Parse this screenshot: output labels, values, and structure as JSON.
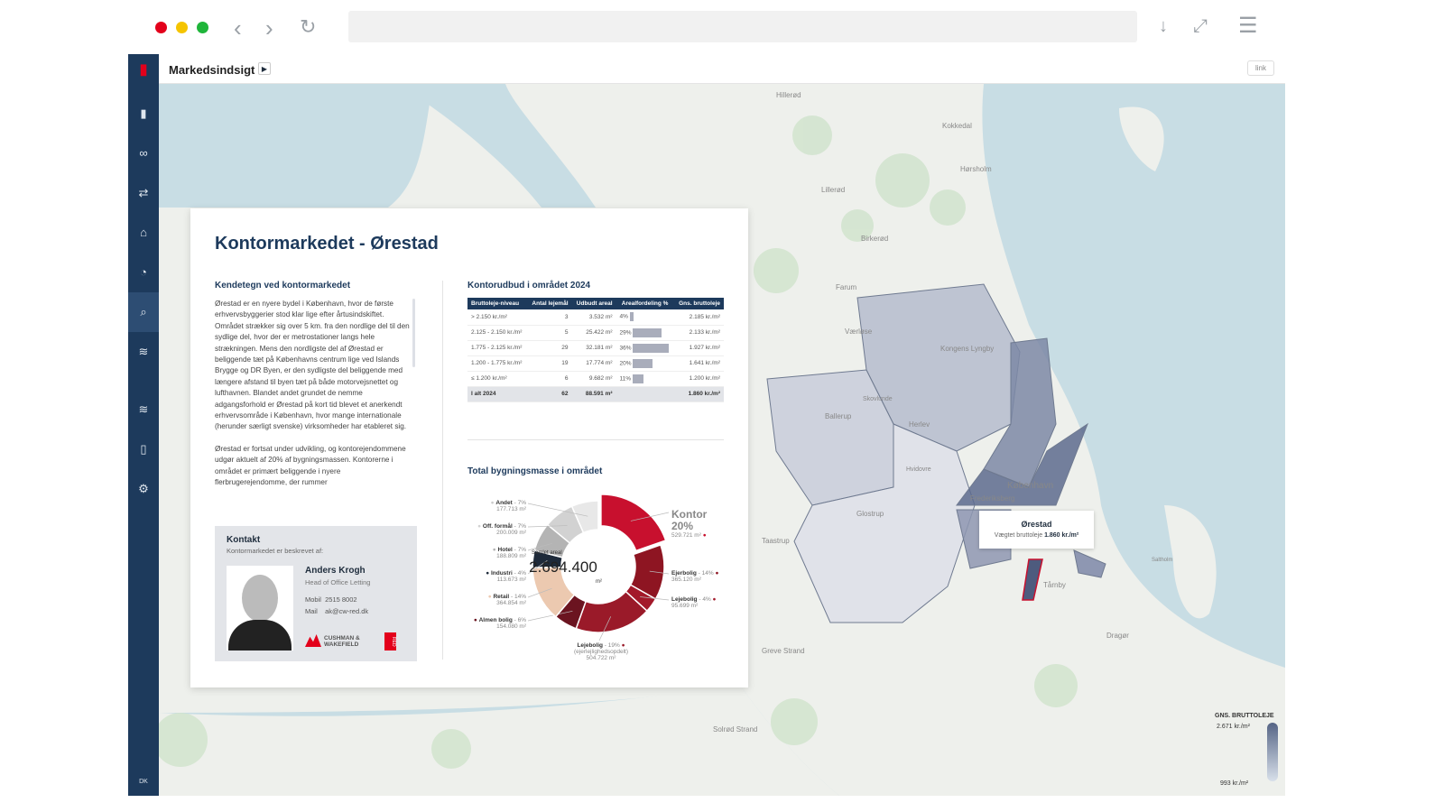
{
  "browser": {
    "icons": [
      "back-icon",
      "forward-icon",
      "reload-icon",
      "download-icon",
      "fullscreen-icon",
      "menu-icon"
    ]
  },
  "header": {
    "title": "Markedsindsigt",
    "link_label": "link"
  },
  "sidebar": {
    "items": [
      "book-icon",
      "binoculars-icon",
      "transfer-icon",
      "home-icon",
      "chart-icon",
      "search-icon",
      "layers-icon",
      "layers2-icon",
      "document-icon",
      "settings-icon"
    ],
    "footer": "DK"
  },
  "card": {
    "title": "Kontormarkedet - Ørestad",
    "left_heading": "Kendetegn ved kontormarkedet",
    "paragraphs": [
      "Ørestad er en nyere bydel i København, hvor de første erhvervsbyggerier stod klar lige efter årtusindskiftet. Området strækker sig over 5 km. fra den nordlige del til den sydlige del, hvor der er metrostationer langs hele strækningen. Mens den nordligste del af Ørestad er beliggende tæt på Københavns centrum lige ved Islands Brygge og DR Byen, er den sydligste del beliggende med længere afstand til byen tæt på både motorvejsnettet og lufthavnen. Blandet andet grundet de nemme adgangsforhold er Ørestad på kort tid blevet et anerkendt erhvervsområde i København, hvor mange internationale (herunder særligt svenske) virksomheder har etableret sig.",
      "Ørestad er fortsat under udvikling, og kontorejendommene udgør aktuelt af 20% af bygningsmassen. Kontorerne i området er primært beliggende i nyere flerbrugerejendomme, der rummer"
    ],
    "contact": {
      "heading": "Kontakt",
      "subtitle": "Kontormarkedet er beskrevet af:",
      "name": "Anders Krogh",
      "role": "Head of Office Letting",
      "mobile_label": "Mobil",
      "mobile": "2515 8002",
      "mail_label": "Mail",
      "mail": "ak@cw-red.dk",
      "logo": "CUSHMAN & WAKEFIELD",
      "logo2": "RED"
    },
    "table_heading": "Kontorudbud i området 2024",
    "table": {
      "headers": [
        "Bruttoleje-niveau",
        "Antal lejemål",
        "Udbudt areal",
        "Arealfordeling %",
        "Gns. bruttoleje"
      ],
      "rows": [
        {
          "level": "> 2.150 kr./m²",
          "count": "3",
          "area": "3.532 m²",
          "pct": 4,
          "pct_label": "4%",
          "rent": "2.185 kr./m²"
        },
        {
          "level": "2.125 - 2.150 kr./m²",
          "count": "5",
          "area": "25.422 m²",
          "pct": 29,
          "pct_label": "29%",
          "rent": "2.133 kr./m²"
        },
        {
          "level": "1.775 - 2.125 kr./m²",
          "count": "29",
          "area": "32.181 m²",
          "pct": 36,
          "pct_label": "36%",
          "rent": "1.927 kr./m²"
        },
        {
          "level": "1.200 - 1.775 kr./m²",
          "count": "19",
          "area": "17.774 m²",
          "pct": 20,
          "pct_label": "20%",
          "rent": "1.641 kr./m²"
        },
        {
          "level": "≤ 1.200 kr./m²",
          "count": "6",
          "area": "9.682 m²",
          "pct": 11,
          "pct_label": "11%",
          "rent": "1.200 kr./m²"
        }
      ],
      "total": {
        "level": "I alt 2024",
        "count": "62",
        "area": "88.591 m²",
        "rent": "1.860 kr./m²"
      }
    },
    "donut_heading": "Total bygningsmasse i området"
  },
  "chart_data": {
    "type": "pie",
    "title": "Total bygningsmasse i området",
    "center_label": "Samlet areal",
    "center_value": "2.694.400",
    "center_unit": "m²",
    "slices": [
      {
        "name": "Kontor",
        "pct": "20%",
        "area": "529.721 m²",
        "value": 529721,
        "color": "#c8102e"
      },
      {
        "name": "Ejerbolig",
        "pct": "14%",
        "area": "365.120 m²",
        "value": 365120,
        "color": "#8e1522"
      },
      {
        "name": "Lejebolig",
        "pct": "4%",
        "area": "95.699 m²",
        "value": 95699,
        "color": "#a3192a"
      },
      {
        "name": "Lejebolig",
        "pct": "19%",
        "sub": "(ejerlejlighedsopdelt)",
        "area": "504.722 m²",
        "value": 504722,
        "color": "#9a1a29"
      },
      {
        "name": "Almen bolig",
        "pct": "6%",
        "area": "154.080 m²",
        "value": 154080,
        "color": "#6b1420"
      },
      {
        "name": "Retail",
        "pct": "14%",
        "area": "364.854 m²",
        "value": 364854,
        "color": "#ecc9b0"
      },
      {
        "name": "Industri",
        "pct": "4%",
        "area": "113.673 m²",
        "value": 113673,
        "color": "#1e2a3a"
      },
      {
        "name": "Hotel",
        "pct": "7%",
        "area": "188.809 m²",
        "value": 188809,
        "color": "#b4b4b4"
      },
      {
        "name": "Off. formål",
        "pct": "7%",
        "area": "200.009 m²",
        "value": 200009,
        "color": "#d2d2d2"
      },
      {
        "name": "Andet",
        "pct": "7%",
        "area": "177.713 m²",
        "value": 177713,
        "color": "#e8e8e8"
      }
    ]
  },
  "map": {
    "places": [
      "Hillerød",
      "Kokkedal",
      "Hørsholm",
      "Lillerød",
      "Birkerød",
      "Farum",
      "Værløse",
      "Kongens Lyngby",
      "Ballerup",
      "Herlev",
      "Glostrup",
      "København",
      "Frederiksberg",
      "Taastrup",
      "Tårnby",
      "Dragør",
      "Greve Strand",
      "Solrød Strand",
      "Hvidovre",
      "Saltholm",
      "Skovlunde"
    ],
    "tooltip": {
      "title": "Ørestad",
      "label": "Vægtet bruttoleje",
      "value": "1.860 kr./m²"
    },
    "legend": {
      "title": "GNS. BRUTTOLEJE",
      "max": "2.671 kr./m²",
      "min": "993 kr./m²"
    }
  }
}
